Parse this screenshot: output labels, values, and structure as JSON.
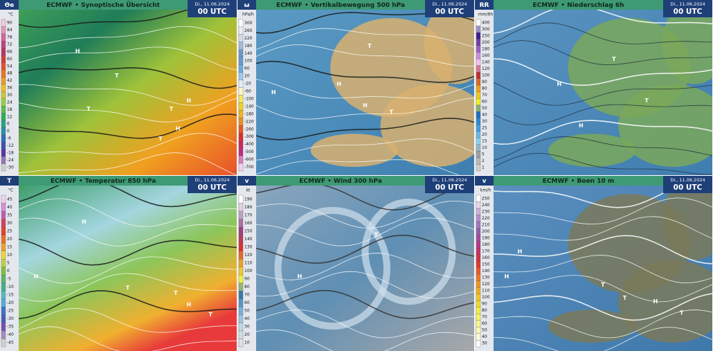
{
  "panels": [
    {
      "symbol": "Θe",
      "unit": "°C",
      "title": "ECMWF • Synoptische Übersicht",
      "date": "Di., 11.06.2024",
      "time": "00 UTC",
      "legend": [
        "90",
        "84",
        "78",
        "72",
        "66",
        "60",
        "54",
        "48",
        "42",
        "36",
        "30",
        "24",
        "18",
        "12",
        "6",
        "0",
        "-6",
        "-12",
        "-18",
        "-24",
        "-30"
      ],
      "map_labels": [
        "H",
        "T",
        "T",
        "H",
        "T",
        "H",
        "T"
      ]
    },
    {
      "symbol": "ω",
      "unit": "hPa/h",
      "title": "ECMWF • Vertikalbewegung 500 hPa",
      "date": "Di., 11.06.2024",
      "time": "00 UTC",
      "legend": [
        "300",
        "260",
        "220",
        "180",
        "140",
        "100",
        "60",
        "20",
        "-20",
        "-60",
        "-100",
        "-140",
        "-180",
        "-220",
        "-260",
        "-300",
        "-400",
        "-500",
        "-600",
        "-700"
      ],
      "map_labels": [
        "H",
        "T",
        "H",
        "T",
        "H"
      ]
    },
    {
      "symbol": "RR",
      "unit": "mm/6h",
      "title": "ECMWF • Niederschlag 6h",
      "date": "Di., 11.06.2024",
      "time": "00 UTC",
      "legend": [
        "400",
        "300",
        "250",
        "200",
        "180",
        "160",
        "140",
        "120",
        "100",
        "90",
        "80",
        "70",
        "60",
        "50",
        "40",
        "30",
        "25",
        "20",
        "15",
        "10",
        "5",
        "2",
        "1"
      ],
      "map_labels": [
        "H",
        "T",
        "T",
        "H"
      ]
    },
    {
      "symbol": "T",
      "unit": "°C",
      "title": "ECMWF • Temperatur 850 hPa",
      "date": "Di., 11.06.2024",
      "time": "00 UTC",
      "legend": [
        "45",
        "40",
        "35",
        "30",
        "25",
        "20",
        "15",
        "10",
        "5",
        "0",
        "-5",
        "-10",
        "-15",
        "-20",
        "-25",
        "-30",
        "-35",
        "-40",
        "-45"
      ],
      "map_labels": [
        "H",
        "H",
        "T",
        "T",
        "H",
        "T"
      ]
    },
    {
      "symbol": "v",
      "unit": "kt",
      "title": "ECMWF • Wind 300 hPa",
      "date": "Di., 11.06.2024",
      "time": "00 UTC",
      "legend": [
        "190",
        "180",
        "170",
        "160",
        "150",
        "140",
        "130",
        "120",
        "110",
        "100",
        "90",
        "80",
        "70",
        "60",
        "50",
        "40",
        "30",
        "20",
        "10"
      ],
      "map_labels": [
        "T",
        "H"
      ]
    },
    {
      "symbol": "v",
      "unit": "km/h",
      "title": "ECMWF • Boen 10 m",
      "date": "Di., 11.06.2024",
      "time": "00 UTC",
      "legend": [
        "250",
        "240",
        "230",
        "220",
        "210",
        "200",
        "190",
        "180",
        "170",
        "160",
        "150",
        "140",
        "130",
        "120",
        "110",
        "100",
        "90",
        "80",
        "70",
        "60",
        "50",
        "40",
        "30"
      ],
      "map_labels": [
        "H",
        "H",
        "T",
        "T",
        "H",
        "T"
      ]
    }
  ]
}
